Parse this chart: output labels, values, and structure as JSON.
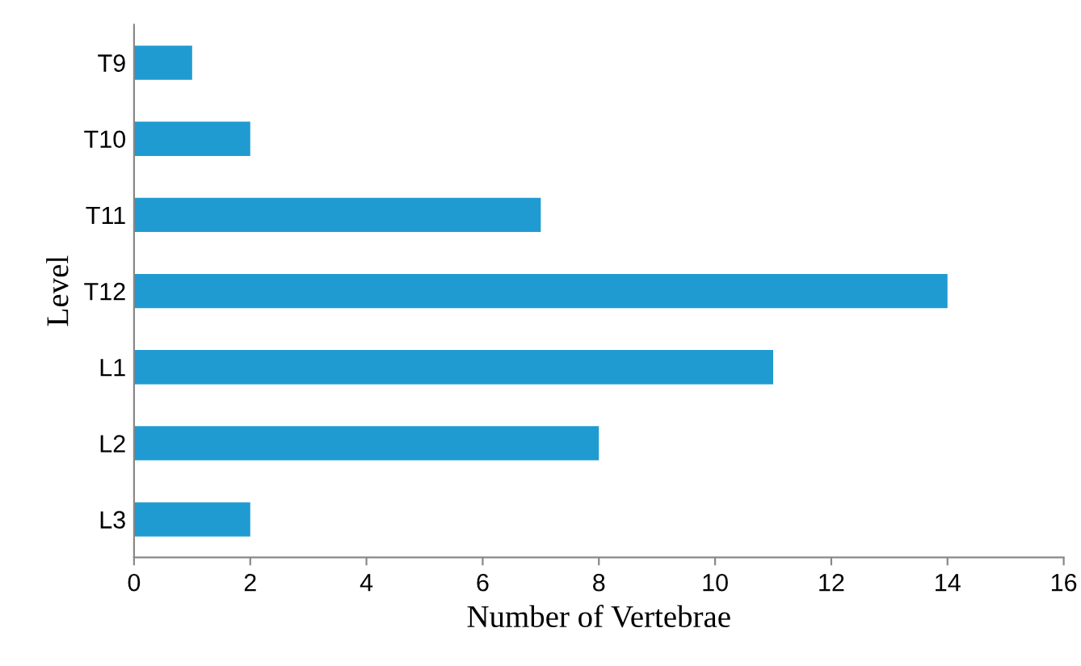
{
  "chart_data": {
    "type": "bar",
    "orientation": "horizontal",
    "xlabel": "Number of Vertebrae",
    "ylabel": "Level",
    "categories": [
      "T9",
      "T10",
      "T11",
      "T12",
      "L1",
      "L2",
      "L3"
    ],
    "values": [
      1,
      2,
      7,
      14,
      11,
      8,
      2
    ],
    "color": "#1f9bd1",
    "xlim": [
      0,
      16
    ],
    "xticks": [
      0,
      2,
      4,
      6,
      8,
      10,
      12,
      14,
      16
    ],
    "grid": false
  }
}
